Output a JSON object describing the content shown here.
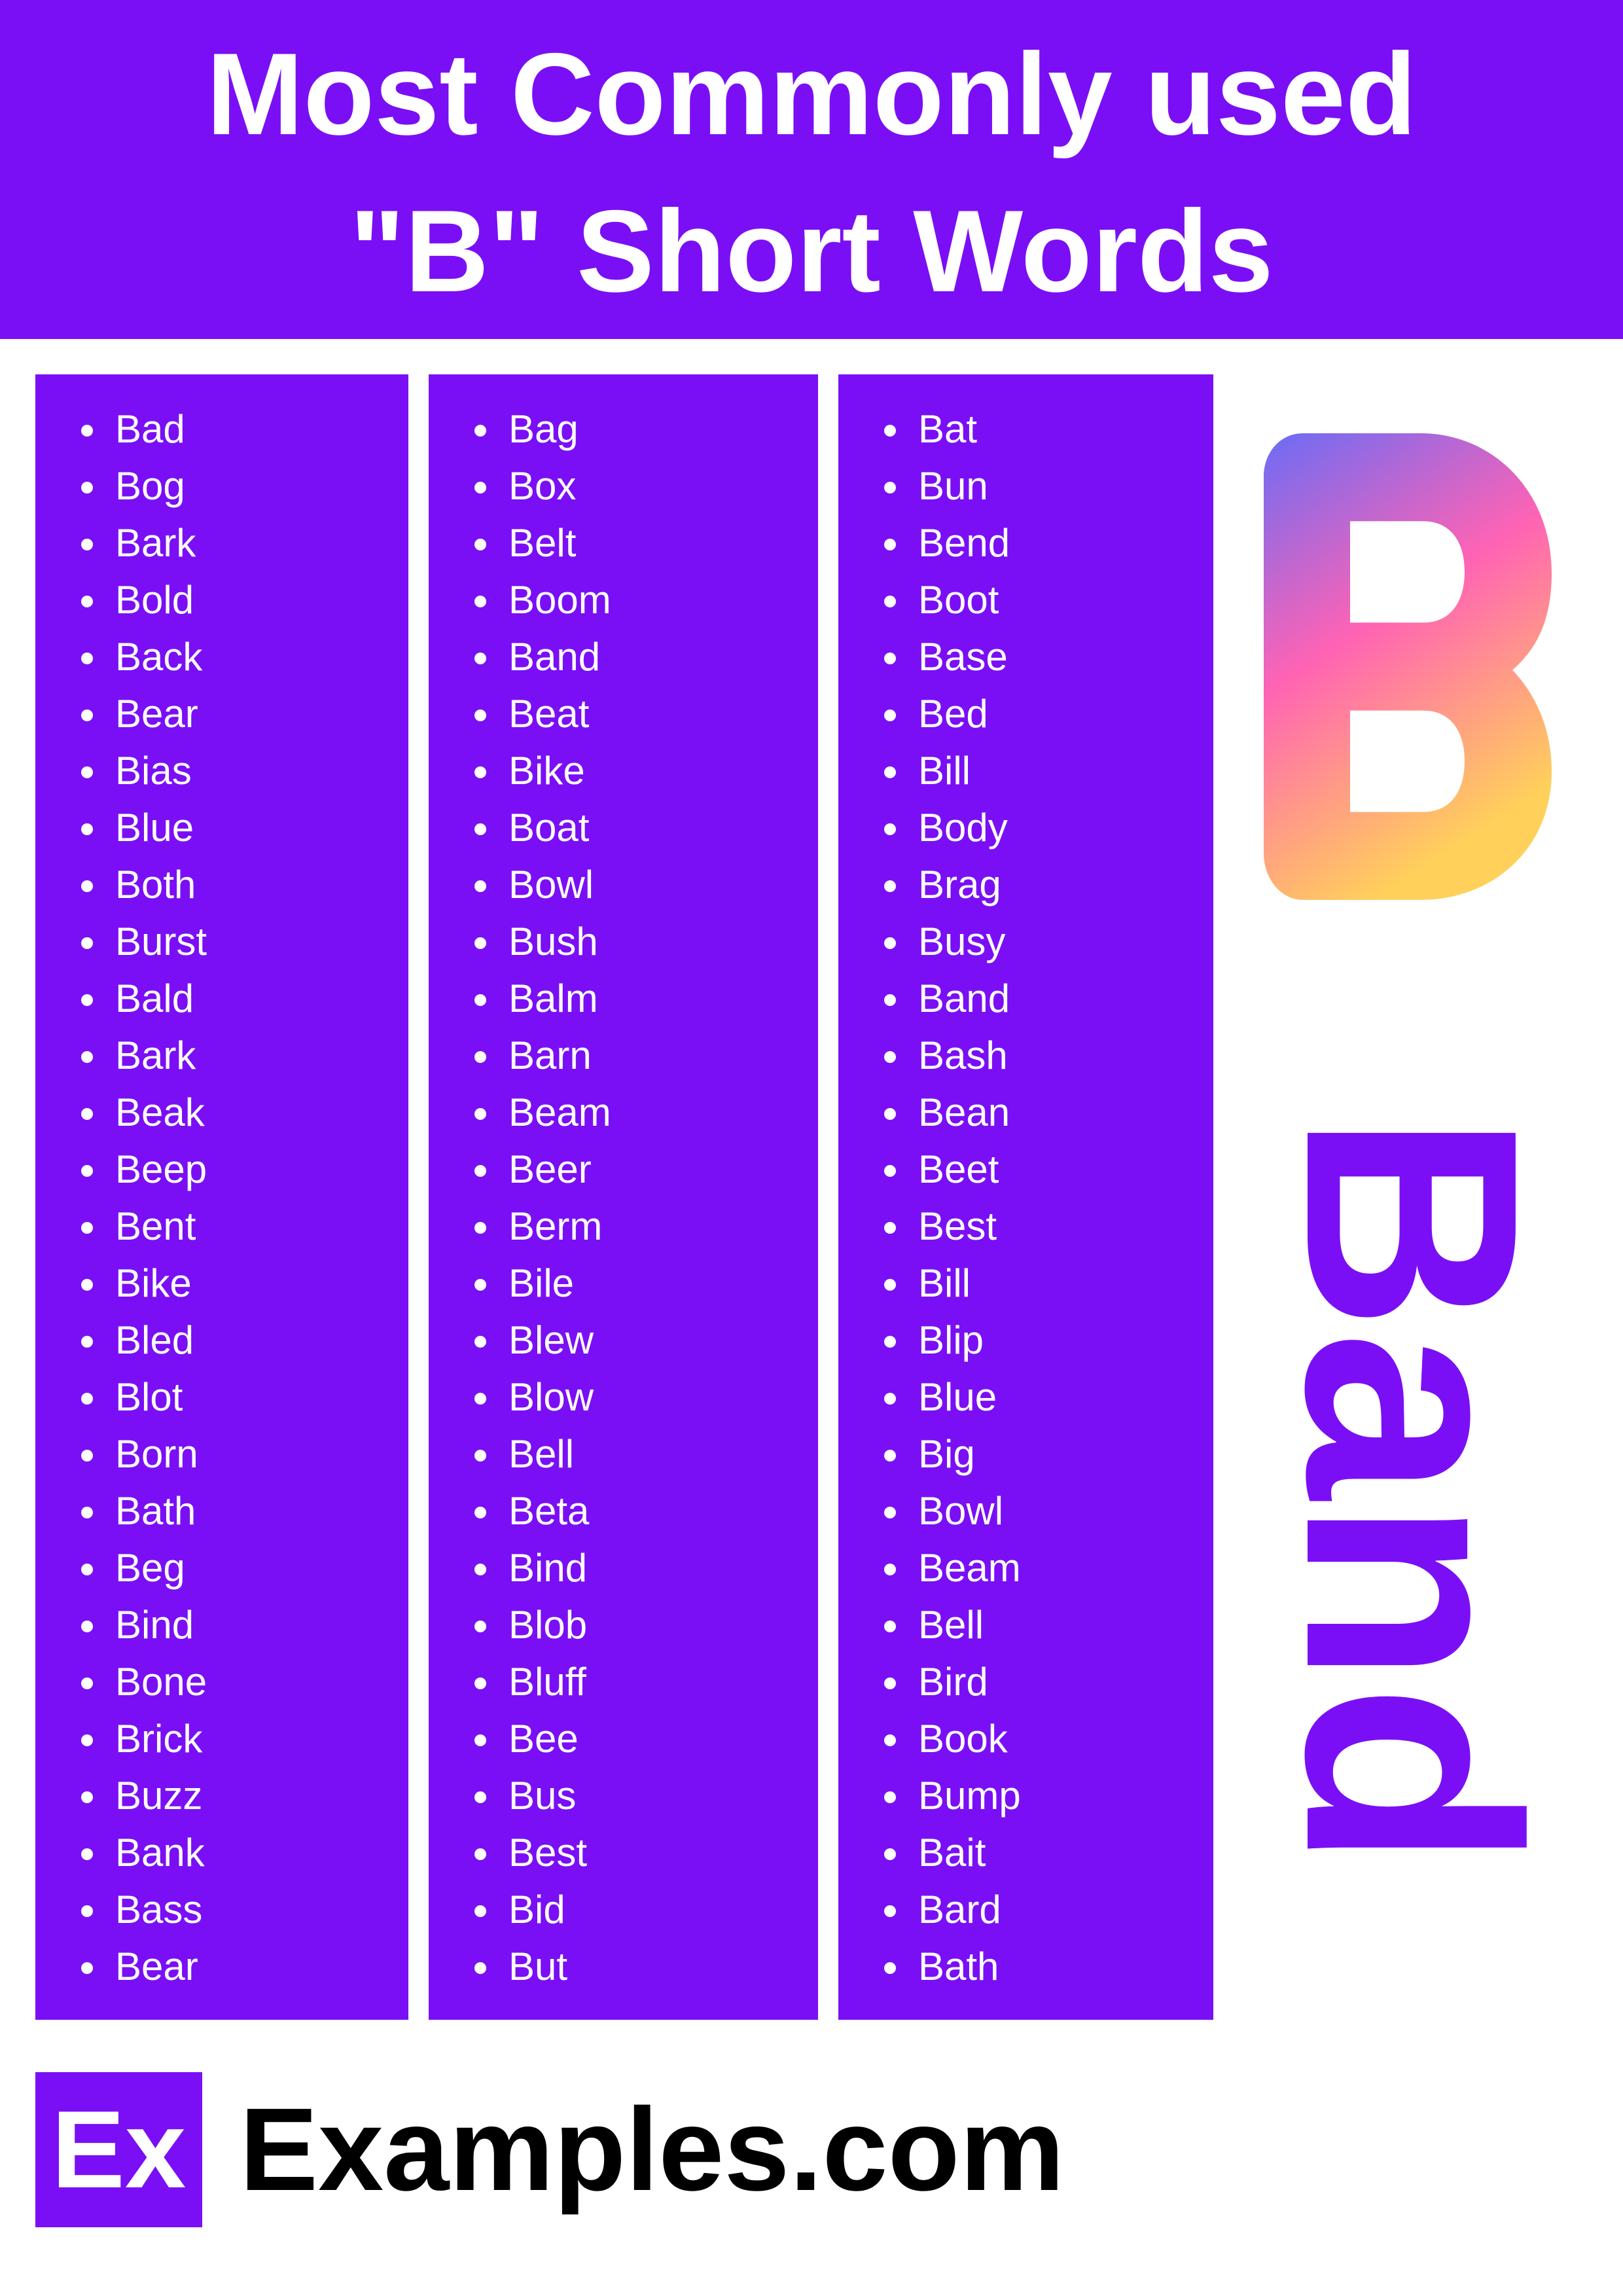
{
  "title": {
    "line1": "Most Commonly used",
    "line2": "\"B\" Short Words"
  },
  "columns": [
    [
      "Bad",
      "Bog",
      "Bark",
      "Bold",
      "Back",
      "Bear",
      "Bias",
      "Blue",
      "Both",
      "Burst",
      "Bald",
      "Bark",
      "Beak",
      "Beep",
      "Bent",
      "Bike",
      "Bled",
      "Blot",
      "Born",
      "Bath",
      "Beg",
      "Bind",
      "Bone",
      "Brick",
      "Buzz",
      "Bank",
      "Bass",
      "Bear"
    ],
    [
      "Bag",
      "Box",
      "Belt",
      "Boom",
      "Band",
      "Beat",
      "Bike",
      "Boat",
      "Bowl",
      "Bush",
      "Balm",
      "Barn",
      "Beam",
      "Beer",
      "Berm",
      "Bile",
      "Blew",
      "Blow",
      "Bell",
      "Beta",
      "Bind",
      "Blob",
      "Bluff",
      "Bee",
      "Bus",
      "Best",
      "Bid",
      "But"
    ],
    [
      "Bat",
      "Bun",
      "Bend",
      "Boot",
      "Base",
      "Bed",
      "Bill",
      "Body",
      "Brag",
      "Busy",
      "Band",
      "Bash",
      "Bean",
      "Beet",
      "Best",
      "Bill",
      "Blip",
      "Blue",
      "Big",
      "Bowl",
      "Beam",
      "Bell",
      "Bird",
      "Book",
      "Bump",
      "Bait",
      "Bard",
      "Bath"
    ]
  ],
  "featured": {
    "letter": "B",
    "example_word": "Band"
  },
  "footer": {
    "logo_text": "Ex",
    "site_name": "Examples.com"
  },
  "colors": {
    "brand_purple": "#7a0ff5",
    "gradient": [
      "#6b6cf5",
      "#ff63b4",
      "#ffd15a"
    ]
  }
}
